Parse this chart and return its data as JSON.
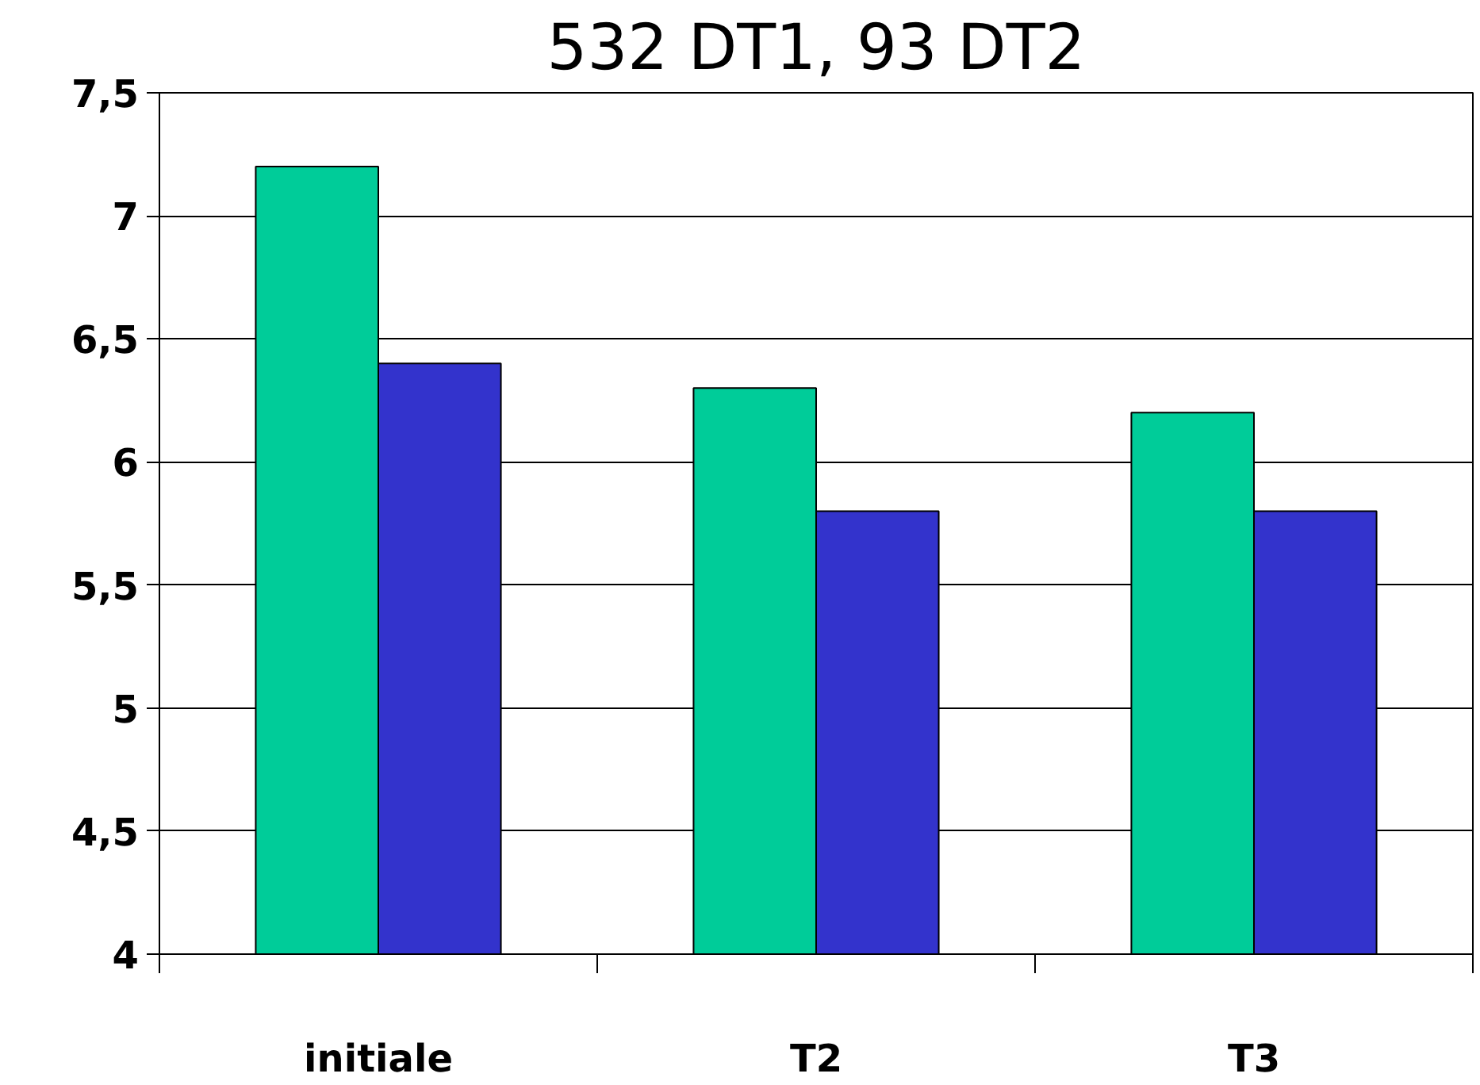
{
  "chart_data": {
    "type": "bar",
    "title": "532 DT1, 93 DT2",
    "categories": [
      "initiale",
      "T2",
      "T3"
    ],
    "series": [
      {
        "color": "#00cc99",
        "values": [
          7.2,
          6.3,
          6.2
        ]
      },
      {
        "color": "#3333cc",
        "values": [
          6.4,
          5.8,
          5.8
        ]
      }
    ],
    "ylim": [
      4,
      7.5
    ],
    "yticks": [
      {
        "value": 4,
        "label": "4"
      },
      {
        "value": 4.5,
        "label": "4,5"
      },
      {
        "value": 5,
        "label": "5"
      },
      {
        "value": 5.5,
        "label": "5,5"
      },
      {
        "value": 6,
        "label": "6"
      },
      {
        "value": 6.5,
        "label": "6,5"
      },
      {
        "value": 7,
        "label": "7"
      },
      {
        "value": 7.5,
        "label": "7,5"
      }
    ],
    "grid": "y"
  }
}
